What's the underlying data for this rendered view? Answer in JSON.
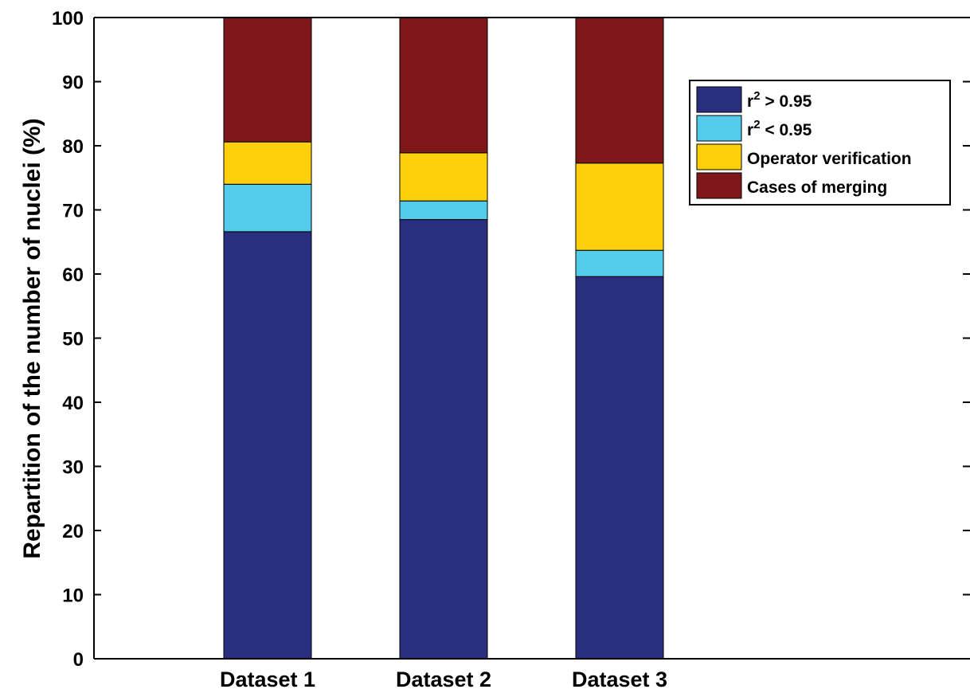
{
  "chart_data": {
    "type": "bar",
    "stacked": true,
    "categories": [
      "Dataset 1",
      "Dataset 2",
      "Dataset 3"
    ],
    "series": [
      {
        "name": "r² > 0.95",
        "name_base": "r",
        "name_sup": "2",
        "name_rest": " > 0.95",
        "color": "#292E7F",
        "values": [
          66.6,
          68.5,
          59.6
        ]
      },
      {
        "name": "r² < 0.95",
        "name_base": "r",
        "name_sup": "2",
        "name_rest": " < 0.95",
        "color": "#53CBEB",
        "values": [
          7.4,
          2.9,
          4.1
        ]
      },
      {
        "name": "Operator verification",
        "color": "#FED00C",
        "values": [
          6.6,
          7.5,
          13.6
        ]
      },
      {
        "name": "Cases of merging",
        "color": "#7F1618",
        "values": [
          19.4,
          21.1,
          22.7
        ]
      }
    ],
    "title": "",
    "xlabel": "",
    "ylabel": "Repartition of the number of nuclei (%)",
    "ylim": [
      0,
      100
    ],
    "yticks": [
      0,
      10,
      20,
      30,
      40,
      50,
      60,
      70,
      80,
      90,
      100
    ],
    "grid": false,
    "legend_position": "top-right"
  }
}
